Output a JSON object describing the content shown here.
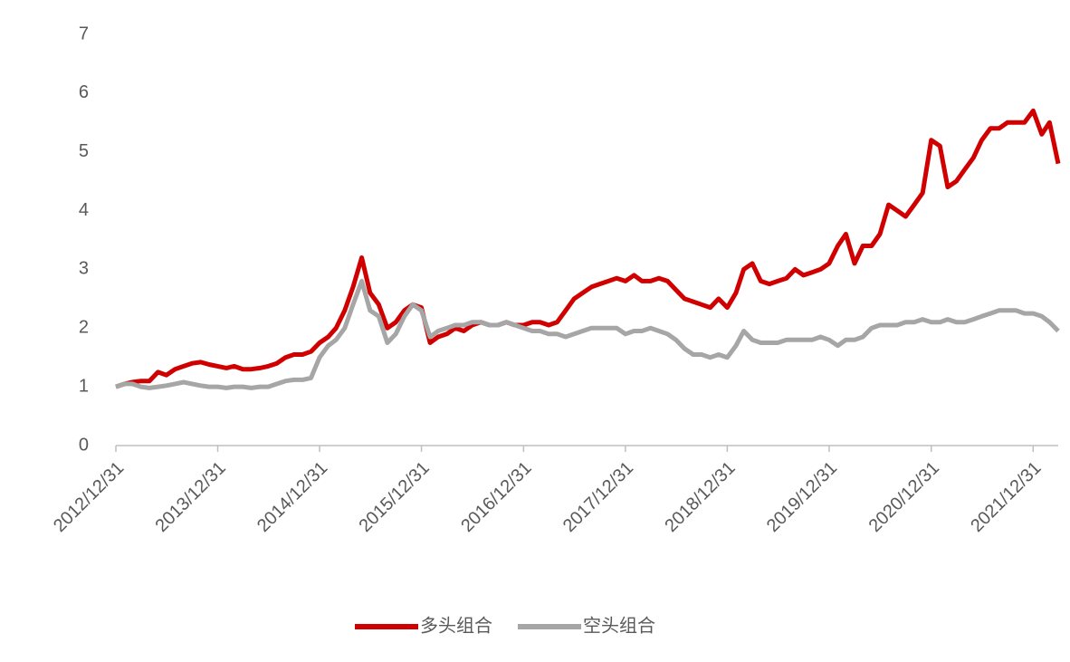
{
  "chart_data": {
    "type": "line",
    "x": [
      "2012/12/31",
      "2013/01/31",
      "2013/02/28",
      "2013/03/31",
      "2013/04/30",
      "2013/05/31",
      "2013/06/30",
      "2013/07/31",
      "2013/08/31",
      "2013/09/30",
      "2013/10/31",
      "2013/11/30",
      "2013/12/31",
      "2014/01/31",
      "2014/02/28",
      "2014/03/31",
      "2014/04/30",
      "2014/05/31",
      "2014/06/30",
      "2014/07/31",
      "2014/08/31",
      "2014/09/30",
      "2014/10/31",
      "2014/11/30",
      "2014/12/31",
      "2015/01/31",
      "2015/02/28",
      "2015/03/31",
      "2015/04/30",
      "2015/05/31",
      "2015/06/30",
      "2015/07/31",
      "2015/08/31",
      "2015/09/30",
      "2015/10/31",
      "2015/11/30",
      "2015/12/31",
      "2016/01/31",
      "2016/02/29",
      "2016/03/31",
      "2016/04/30",
      "2016/05/31",
      "2016/06/30",
      "2016/07/31",
      "2016/08/31",
      "2016/09/30",
      "2016/10/31",
      "2016/11/30",
      "2016/12/31",
      "2017/01/31",
      "2017/02/28",
      "2017/03/31",
      "2017/04/30",
      "2017/05/31",
      "2017/06/30",
      "2017/07/31",
      "2017/08/31",
      "2017/09/30",
      "2017/10/31",
      "2017/11/30",
      "2017/12/31",
      "2018/01/31",
      "2018/02/28",
      "2018/03/31",
      "2018/04/30",
      "2018/05/31",
      "2018/06/30",
      "2018/07/31",
      "2018/08/31",
      "2018/09/30",
      "2018/10/31",
      "2018/11/30",
      "2018/12/31",
      "2019/01/31",
      "2019/02/28",
      "2019/03/31",
      "2019/04/30",
      "2019/05/31",
      "2019/06/30",
      "2019/07/31",
      "2019/08/31",
      "2019/09/30",
      "2019/10/31",
      "2019/11/30",
      "2019/12/31",
      "2020/01/31",
      "2020/02/29",
      "2020/03/31",
      "2020/04/30",
      "2020/05/31",
      "2020/06/30",
      "2020/07/31",
      "2020/08/31",
      "2020/09/30",
      "2020/10/31",
      "2020/11/30",
      "2020/12/31",
      "2021/01/31",
      "2021/02/28",
      "2021/03/31",
      "2021/04/30",
      "2021/05/31",
      "2021/06/30",
      "2021/07/31",
      "2021/08/31",
      "2021/09/30",
      "2021/10/31",
      "2021/11/30",
      "2021/12/31",
      "2022/01/31",
      "2022/02/28",
      "2022/03/31"
    ],
    "series": [
      {
        "name": "多头组合",
        "color": "#d00000",
        "values": [
          1.0,
          1.05,
          1.08,
          1.1,
          1.1,
          1.25,
          1.2,
          1.3,
          1.35,
          1.4,
          1.42,
          1.38,
          1.35,
          1.32,
          1.35,
          1.3,
          1.3,
          1.32,
          1.35,
          1.4,
          1.5,
          1.55,
          1.55,
          1.6,
          1.75,
          1.85,
          2.0,
          2.3,
          2.7,
          3.2,
          2.6,
          2.4,
          2.0,
          2.1,
          2.3,
          2.4,
          2.35,
          1.75,
          1.85,
          1.9,
          2.0,
          1.95,
          2.05,
          2.1,
          2.05,
          2.05,
          2.1,
          2.05,
          2.05,
          2.1,
          2.1,
          2.05,
          2.1,
          2.3,
          2.5,
          2.6,
          2.7,
          2.75,
          2.8,
          2.85,
          2.8,
          2.9,
          2.8,
          2.8,
          2.85,
          2.8,
          2.65,
          2.5,
          2.45,
          2.4,
          2.35,
          2.5,
          2.35,
          2.6,
          3.0,
          3.1,
          2.8,
          2.75,
          2.8,
          2.85,
          3.0,
          2.9,
          2.95,
          3.0,
          3.1,
          3.4,
          3.6,
          3.1,
          3.4,
          3.4,
          3.6,
          4.1,
          4.0,
          3.9,
          4.1,
          4.3,
          5.2,
          5.1,
          4.4,
          4.5,
          4.7,
          4.9,
          5.2,
          5.4,
          5.4,
          5.5,
          5.5,
          5.5,
          5.7,
          5.3,
          5.5,
          4.8
        ]
      },
      {
        "name": "空头组合",
        "color": "#a6a6a6",
        "values": [
          1.0,
          1.05,
          1.05,
          1.0,
          0.98,
          1.0,
          1.02,
          1.05,
          1.08,
          1.05,
          1.02,
          1.0,
          1.0,
          0.98,
          1.0,
          1.0,
          0.98,
          1.0,
          1.0,
          1.05,
          1.1,
          1.12,
          1.12,
          1.15,
          1.5,
          1.7,
          1.8,
          2.0,
          2.4,
          2.8,
          2.3,
          2.2,
          1.75,
          1.9,
          2.2,
          2.4,
          2.3,
          1.85,
          1.95,
          2.0,
          2.05,
          2.05,
          2.1,
          2.1,
          2.05,
          2.05,
          2.1,
          2.05,
          2.0,
          1.95,
          1.95,
          1.9,
          1.9,
          1.85,
          1.9,
          1.95,
          2.0,
          2.0,
          2.0,
          2.0,
          1.9,
          1.95,
          1.95,
          2.0,
          1.95,
          1.9,
          1.8,
          1.65,
          1.55,
          1.55,
          1.5,
          1.55,
          1.5,
          1.7,
          1.95,
          1.8,
          1.75,
          1.75,
          1.75,
          1.8,
          1.8,
          1.8,
          1.8,
          1.85,
          1.8,
          1.7,
          1.8,
          1.8,
          1.85,
          2.0,
          2.05,
          2.05,
          2.05,
          2.1,
          2.1,
          2.15,
          2.1,
          2.1,
          2.15,
          2.1,
          2.1,
          2.15,
          2.2,
          2.25,
          2.3,
          2.3,
          2.3,
          2.25,
          2.25,
          2.2,
          2.1,
          1.95
        ]
      }
    ],
    "xlim": [
      "2012/12/31",
      "2022/03/31"
    ],
    "xticks": [
      "2012/12/31",
      "2013/12/31",
      "2014/12/31",
      "2015/12/31",
      "2016/12/31",
      "2017/12/31",
      "2018/12/31",
      "2019/12/31",
      "2020/12/31",
      "2021/12/31"
    ],
    "ylim": [
      0,
      7
    ],
    "yticks": [
      0,
      1,
      2,
      3,
      4,
      5,
      6,
      7
    ],
    "grid": false,
    "legend": "bottom"
  }
}
